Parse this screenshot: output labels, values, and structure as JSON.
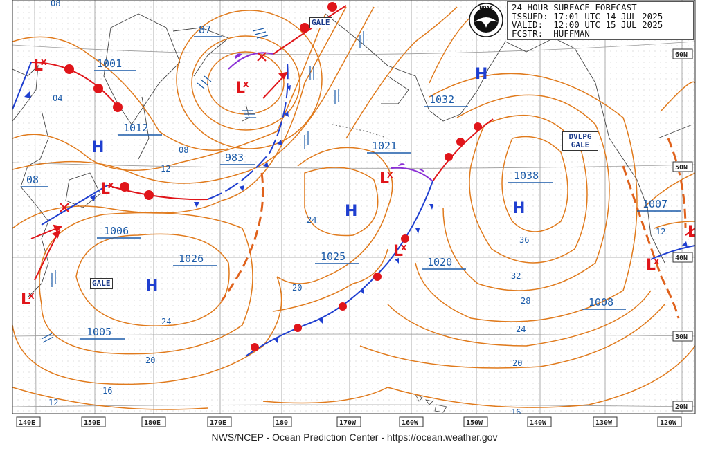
{
  "header": {
    "line1": "24-HOUR SURFACE FORECAST",
    "line2": "ISSUED: 17:01 UTC 14 JUL 2025",
    "line3": "VALID:  12:00 UTC 15 JUL 2025",
    "line4": "FCSTR:  HUFFMAN"
  },
  "footer": {
    "credit": "NWS/NCEP - Ocean Prediction Center - https://ocean.weather.gov"
  },
  "logo": {
    "icon": "noaa-logo-icon",
    "text": "NOAA"
  },
  "longitude_labels": [
    "140E",
    "150E",
    "180E",
    "170E",
    "180",
    "170W",
    "160W",
    "150W",
    "140W",
    "130W",
    "120W"
  ],
  "latitude_labels": [
    "60N",
    "50N",
    "40N",
    "30N",
    "20N"
  ],
  "pressure_centers": [
    {
      "type": "L",
      "value": "1001"
    },
    {
      "type": "L",
      "value": "87"
    },
    {
      "type": "L",
      "value": "983"
    },
    {
      "type": "L",
      "value": "08"
    },
    {
      "type": "L",
      "value": "1006"
    },
    {
      "type": "L",
      "value": "1005"
    },
    {
      "type": "L",
      "value": "1025"
    },
    {
      "type": "L",
      "value": "1020"
    },
    {
      "type": "L",
      "value": "1007"
    },
    {
      "type": "H",
      "value": "1012"
    },
    {
      "type": "H",
      "value": "1026"
    },
    {
      "type": "H",
      "value": "1021"
    },
    {
      "type": "H",
      "value": "1032"
    },
    {
      "type": "H",
      "value": "1038"
    },
    {
      "type": "H",
      "value": "1008"
    }
  ],
  "isobar_labels": [
    "08",
    "04",
    "08",
    "12",
    "24",
    "20",
    "24",
    "20",
    "16",
    "12",
    "36",
    "32",
    "28",
    "24",
    "20",
    "16",
    "12"
  ],
  "warnings": [
    "GALE",
    "GALE",
    "DVLPG GALE"
  ],
  "colors": {
    "isobar": "#e07a1c",
    "cold_front": "#1f3fd0",
    "warm_front": "#e0151a",
    "occluded_front": "#8b2fd6",
    "text_blue": "#1a5aa8",
    "land": "#444444",
    "grid": "#9a9a9a"
  }
}
